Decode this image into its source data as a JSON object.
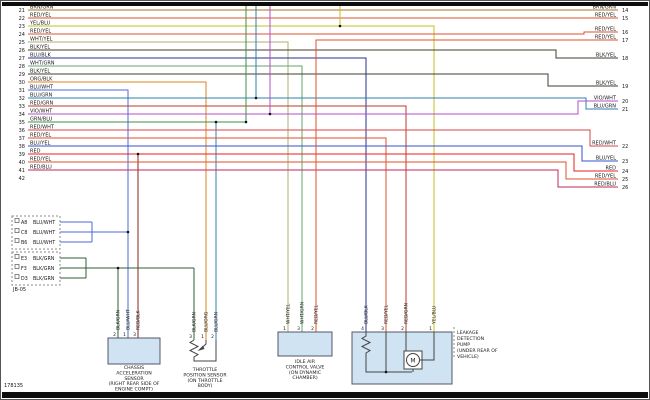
{
  "footer": {
    "number": "178135"
  },
  "palette": {
    "BRN/GRN": "#a9741e",
    "RED/YEL": "#e0512c",
    "YEL/BLU": "#c6bd25",
    "WHT/YEL": "#b3ad6e",
    "BLK/YEL": "#3f3f2f",
    "BLU/BLK": "#26308f",
    "WHT/GRN": "#63a46a",
    "ORG/BLK": "#db851c",
    "BLU/WHT": "#4c68d9",
    "BLU/GRN": "#2f7fae",
    "RED/GRN": "#bf3a24",
    "VIO/WHT": "#b14fc9",
    "GRN/BLU": "#3c8f46",
    "RED/WHT": "#d94545",
    "BLU/YEL": "#3a50cc",
    "RED": "#e81f1f",
    "RED/BLU": "#c22a5a",
    "RED/BLK": "#8e221a",
    "BLK/GRN": "#2f5c33",
    "BLU/ORG": "#d9821f"
  },
  "left_pins": [
    {
      "pin": "21",
      "label": "BRN/GRN"
    },
    {
      "pin": "22",
      "label": "RED/YEL"
    },
    {
      "pin": "23",
      "label": "YEL/BLU"
    },
    {
      "pin": "24",
      "label": "RED/YEL"
    },
    {
      "pin": "25",
      "label": "WHT/YEL"
    },
    {
      "pin": "26",
      "label": "BLK/YEL"
    },
    {
      "pin": "27",
      "label": "BLU/BLK"
    },
    {
      "pin": "28",
      "label": "WHT/GRN"
    },
    {
      "pin": "29",
      "label": "BLK/YEL"
    },
    {
      "pin": "30",
      "label": "ORG/BLK"
    },
    {
      "pin": "31",
      "label": "BLU/WHT"
    },
    {
      "pin": "32",
      "label": "BLU/GRN"
    },
    {
      "pin": "33",
      "label": "RED/GRN"
    },
    {
      "pin": "34",
      "label": "VIO/WHT"
    },
    {
      "pin": "35",
      "label": "GRN/BLU"
    },
    {
      "pin": "36",
      "label": "RED/WHT"
    },
    {
      "pin": "37",
      "label": "RED/YEL"
    },
    {
      "pin": "38",
      "label": "BLU/YEL"
    },
    {
      "pin": "39",
      "label": "RED"
    },
    {
      "pin": "40",
      "label": "RED/YEL"
    },
    {
      "pin": "41",
      "label": "RED/BLU"
    },
    {
      "pin": "42",
      "label": ""
    }
  ],
  "right_pins": [
    {
      "pin": "14",
      "label": "BRN/GRN"
    },
    {
      "pin": "15",
      "label": "RED/YEL"
    },
    {
      "pin": "16",
      "label": "RED/YEL"
    },
    {
      "pin": "17",
      "label": "RED/YEL"
    },
    {
      "pin": "18",
      "label": "BLK/YEL"
    },
    {
      "pin": "19",
      "label": "BLK/YEL"
    },
    {
      "pin": "20",
      "label": "VIO/WHT"
    },
    {
      "pin": "21",
      "label": "BLU/GRN"
    },
    {
      "pin": "22",
      "label": "RED/WHT"
    },
    {
      "pin": "23",
      "label": "BLU/YEL"
    },
    {
      "pin": "24",
      "label": "RED"
    },
    {
      "pin": "25",
      "label": "RED/YEL"
    },
    {
      "pin": "26",
      "label": "RED/BLU"
    }
  ],
  "junction_block": {
    "name": "JB-05",
    "groups": [
      {
        "pins": [
          {
            "id": "A8",
            "label": "BLU/WHT"
          },
          {
            "id": "C8",
            "label": "BLU/WHT"
          },
          {
            "id": "B6",
            "label": "BLU/WHT"
          }
        ]
      },
      {
        "pins": [
          {
            "id": "E3",
            "label": "BLK/GRN"
          },
          {
            "id": "F3",
            "label": "BLK/GRN"
          },
          {
            "id": "D3",
            "label": "BLK/GRN"
          }
        ]
      }
    ]
  },
  "components": {
    "chassis_sensor": {
      "caption": [
        "CHASSIS",
        "ACCELERATION",
        "SENSOR",
        "(RIGHT REAR SIDE OF",
        "ENGINE COMPT)"
      ],
      "pins": [
        {
          "num": "2",
          "wire": "BLK/GRN"
        },
        {
          "num": "1",
          "wire": "BLU/WHT"
        },
        {
          "num": "3",
          "wire": "RED/BLK"
        }
      ]
    },
    "throttle_sensor": {
      "caption": [
        "THROTTLE",
        "POSITION SENSOR",
        "(ON THROTTLE",
        "BODY)"
      ],
      "pins": [
        {
          "num": "3",
          "wire": "BLK/GRN"
        },
        {
          "num": "1",
          "wire": "BLU/ORG"
        },
        {
          "num": "2",
          "wire": "BLU/GRN"
        }
      ]
    },
    "iac_valve": {
      "caption": [
        "IDLE AIR",
        "CONTROL VALVE",
        "(ON DYNAMIC",
        "CHAMBER)"
      ],
      "pins": [
        {
          "num": "1",
          "wire": "WHT/YEL"
        },
        {
          "num": "3",
          "wire": "WHT/GRN"
        },
        {
          "num": "2",
          "wire": "RED/YEL"
        }
      ]
    },
    "leak_pump": {
      "caption": [
        "LEAKAGE",
        "DETECTION",
        "PUMP",
        "(UNDER REAR OF",
        "VEHICLE)"
      ],
      "motor_label": "M",
      "pins": [
        {
          "num": "4",
          "wire": "BLU/BLK"
        },
        {
          "num": "3",
          "wire": "RED/YEL"
        },
        {
          "num": "2",
          "wire": "RED/GRN"
        },
        {
          "num": "1",
          "wire": "YEL/BLU"
        }
      ]
    }
  }
}
